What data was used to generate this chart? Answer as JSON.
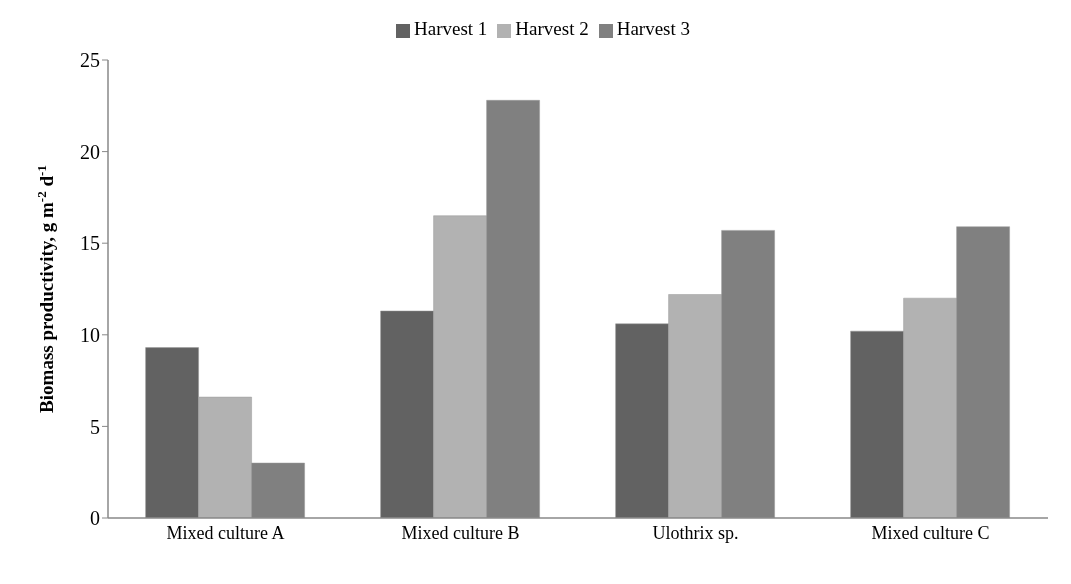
{
  "chart_data": {
    "type": "bar",
    "categories": [
      "Mixed culture A",
      "Mixed culture B",
      "Ulothrix sp.",
      "Mixed culture C"
    ],
    "series": [
      {
        "name": "Harvest 1",
        "color": "#626262",
        "values": [
          9.3,
          11.3,
          10.6,
          10.2
        ]
      },
      {
        "name": "Harvest 2",
        "color": "#b2b2b2",
        "values": [
          6.6,
          16.5,
          12.2,
          12.0
        ]
      },
      {
        "name": "Harvest 3",
        "color": "#808080",
        "values": [
          3.0,
          22.8,
          15.7,
          15.9
        ]
      }
    ],
    "ylabel": "Biomass productivity, g m$^{-2}$ d$^{-1}$",
    "ylim": [
      0,
      25
    ],
    "yticks": [
      0,
      5,
      10,
      15,
      20,
      25
    ],
    "grid": false,
    "legend": "top"
  }
}
